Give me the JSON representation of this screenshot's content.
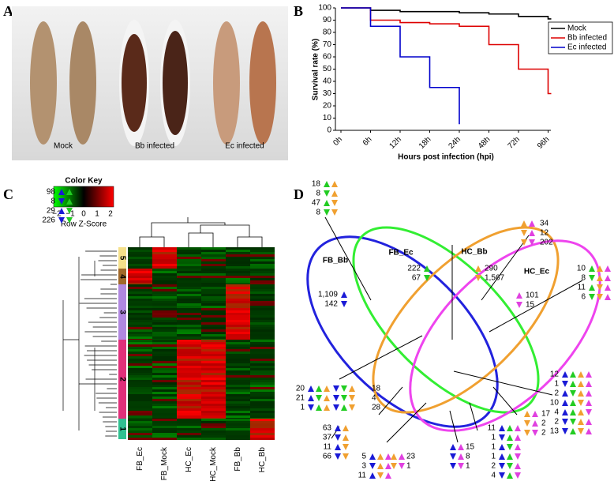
{
  "panel_labels": [
    "A",
    "B",
    "C",
    "D"
  ],
  "photo": {
    "labels": [
      "Mock",
      "Bb infected",
      "Ec infected"
    ]
  },
  "chart_data": {
    "type": "line",
    "ylabel": "Survival rate (%)",
    "xlabel": "Hours post infection (hpi)",
    "categories": [
      "0h",
      "6h",
      "12h",
      "18h",
      "24h",
      "48h",
      "72h",
      "96h"
    ],
    "ylim": [
      0,
      100
    ],
    "yticks": [
      0,
      10,
      20,
      30,
      40,
      50,
      60,
      70,
      80,
      90,
      100
    ],
    "step": true,
    "legend": "top-right",
    "series": [
      {
        "name": "Mock",
        "color": "#000000",
        "values": [
          100,
          98,
          97,
          97,
          96,
          95,
          93,
          91
        ]
      },
      {
        "name": "Bb infected",
        "color": "#dd0000",
        "values": [
          100,
          90,
          88,
          87,
          85,
          70,
          50,
          30
        ]
      },
      {
        "name": "Ec infected",
        "color": "#0000cc",
        "values": [
          100,
          85,
          60,
          35,
          5,
          null,
          null,
          null
        ]
      }
    ]
  },
  "heatmap": {
    "key_title": "Color Key",
    "key_ticks": [
      "−2",
      "−1",
      "0",
      "1",
      "2"
    ],
    "key_label": "Row Z-Score",
    "columns": [
      "FB_Ec",
      "FB_Mock",
      "HC_Ec",
      "HC_Mock",
      "FB_Bb",
      "HC_Bb"
    ],
    "clusters": [
      "5",
      "4",
      "3",
      "2",
      "1"
    ]
  },
  "venn": {
    "sets": [
      "FB_Bb",
      "FB_Ec",
      "HC_Bb",
      "HC_Ec"
    ],
    "groups": [
      {
        "numbers": [
          "98",
          "8",
          "29",
          "226"
        ]
      },
      {
        "numbers": [
          "18",
          "8",
          "47",
          "8"
        ]
      },
      {
        "numbers": [
          "34",
          "12",
          "202"
        ]
      },
      {
        "numbers": [
          "10",
          "8",
          "11",
          "6"
        ]
      },
      {
        "numbers": [
          "222",
          "67"
        ]
      },
      {
        "numbers": [
          "290",
          "1,567"
        ]
      },
      {
        "numbers": [
          "1,109",
          "142"
        ]
      },
      {
        "numbers": [
          "101",
          "15"
        ]
      },
      {
        "numbers": [
          "20",
          "21",
          "1"
        ],
        "numbers_right": [
          "18",
          "4",
          "28"
        ]
      },
      {
        "numbers": [
          "12",
          "1",
          "2",
          "10",
          "4",
          "2",
          "13"
        ]
      },
      {
        "numbers": [
          "17",
          "2",
          "2"
        ]
      },
      {
        "numbers": [
          "63",
          "37",
          "11",
          "66"
        ]
      },
      {
        "numbers": [
          "5",
          "3",
          "11"
        ],
        "numbers_right": [
          "23",
          "1"
        ]
      },
      {
        "numbers": [
          "15",
          "8",
          "1"
        ]
      },
      {
        "numbers": [
          "11",
          "1",
          "1",
          "1",
          "2",
          "4"
        ]
      }
    ]
  }
}
